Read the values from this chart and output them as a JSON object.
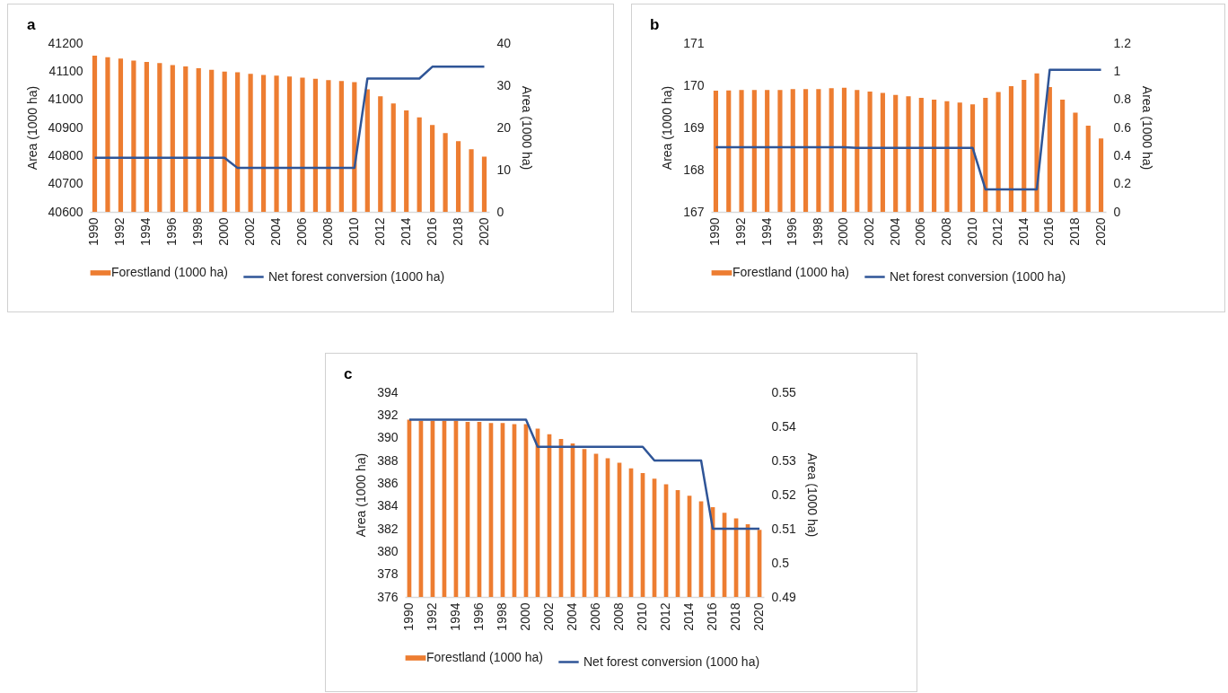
{
  "chart_data": [
    {
      "type": "bar",
      "title": "a",
      "categories": [
        "1990",
        null,
        "1992",
        null,
        "1994",
        null,
        "1996",
        null,
        "1998",
        null,
        "2000",
        null,
        "2002",
        null,
        "2004",
        null,
        "2006",
        null,
        "2008",
        null,
        "2010",
        null,
        "2012",
        null,
        "2014",
        null,
        "2016",
        null,
        "2018",
        null,
        "2020"
      ],
      "ylabel": "Area (1000 ha)",
      "y2label": "Area (1000 ha)",
      "ylim": [
        40600,
        41200
      ],
      "yticks": [
        {
          "value": 40600,
          "label": "40600"
        },
        {
          "value": 40700,
          "label": "40700"
        },
        {
          "value": 40800,
          "label": "40800"
        },
        {
          "value": 40900,
          "label": "40900"
        },
        {
          "value": 41000,
          "label": "41000"
        },
        {
          "value": 41100,
          "label": "41100"
        },
        {
          "value": 41200,
          "label": "41200"
        }
      ],
      "y2lim": [
        0,
        40
      ],
      "y2ticks": [
        0,
        10,
        20,
        30,
        40
      ],
      "legend": "bottom",
      "series": [
        {
          "name": "Forestland (1000 ha)",
          "color": "#ed7d31",
          "values": [
            41155,
            41150,
            41145,
            41138,
            41133,
            41129,
            41122,
            41117,
            41111,
            41105,
            41099,
            41096,
            41091,
            41087,
            41084,
            41081,
            41077,
            41073,
            41068,
            41065,
            41061,
            41036,
            41011,
            40985,
            40961,
            40936,
            40909,
            40880,
            40851,
            40823,
            40796
          ]
        },
        {
          "name": "Net forest conversion  (1000 ha)",
          "type": "line",
          "axis": "y2",
          "color": "#2f5597",
          "values": [
            12.8,
            12.8,
            12.8,
            12.8,
            12.8,
            12.8,
            12.8,
            12.8,
            12.8,
            12.8,
            12.8,
            10.4,
            10.4,
            10.4,
            10.4,
            10.4,
            10.4,
            10.4,
            10.4,
            10.4,
            10.4,
            31.6,
            31.6,
            31.6,
            31.6,
            31.6,
            34.4,
            34.4,
            34.4,
            34.4,
            34.4
          ]
        }
      ]
    },
    {
      "type": "bar",
      "title": "b",
      "categories": [
        "1990",
        null,
        "1992",
        null,
        "1994",
        null,
        "1996",
        null,
        "1998",
        null,
        "2000",
        null,
        "2002",
        null,
        "2004",
        null,
        "2006",
        null,
        "2008",
        null,
        "2010",
        null,
        "2012",
        null,
        "2014",
        null,
        "2016",
        null,
        "2018",
        null,
        "2020"
      ],
      "ylabel": "Area (1000 ha)",
      "y2label": "Area (1000 ha)",
      "ylim": [
        167,
        171
      ],
      "yticks": [
        167,
        168,
        169,
        170,
        171
      ],
      "y2lim": [
        0,
        1.2
      ],
      "y2ticks": [
        0,
        0.2,
        0.4,
        0.6,
        0.8,
        1,
        1.2
      ],
      "legend": "bottom",
      "series": [
        {
          "name": "Forestland (1000 ha)",
          "color": "#ed7d31",
          "values": [
            169.87,
            169.88,
            169.89,
            169.89,
            169.89,
            169.89,
            169.91,
            169.91,
            169.91,
            169.93,
            169.94,
            169.89,
            169.85,
            169.82,
            169.77,
            169.74,
            169.7,
            169.66,
            169.62,
            169.59,
            169.55,
            169.7,
            169.84,
            169.98,
            170.13,
            170.28,
            169.96,
            169.66,
            169.35,
            169.04,
            168.74
          ]
        },
        {
          "name": "Net forest conversion  (1000 ha)",
          "type": "line",
          "axis": "y2",
          "color": "#2f5597",
          "values": [
            0.46,
            0.46,
            0.46,
            0.46,
            0.46,
            0.46,
            0.46,
            0.46,
            0.46,
            0.46,
            0.46,
            0.455,
            0.455,
            0.455,
            0.455,
            0.455,
            0.455,
            0.455,
            0.455,
            0.455,
            0.455,
            0.16,
            0.16,
            0.16,
            0.16,
            0.16,
            1.01,
            1.01,
            1.01,
            1.01,
            1.01
          ]
        }
      ]
    },
    {
      "type": "bar",
      "title": "c",
      "categories": [
        "1990",
        null,
        "1992",
        null,
        "1994",
        null,
        "1996",
        null,
        "1998",
        null,
        "2000",
        null,
        "2002",
        null,
        "2004",
        null,
        "2006",
        null,
        "2008",
        null,
        "2010",
        null,
        "2012",
        null,
        "2014",
        null,
        "2016",
        null,
        "2018",
        null,
        "2020"
      ],
      "ylabel": "Area (1000 ha)",
      "y2label": "Area (1000 ha)",
      "ylim": [
        376,
        394
      ],
      "yticks": [
        376,
        378,
        380,
        382,
        384,
        386,
        388,
        390,
        392,
        394
      ],
      "y2lim": [
        0.49,
        0.55
      ],
      "y2ticks": [
        0.49,
        0.5,
        0.51,
        0.52,
        0.53,
        0.54,
        0.55
      ],
      "legend": "bottom",
      "series": [
        {
          "name": "Forestland (1000 ha)",
          "color": "#ed7d31",
          "values": [
            391.6,
            391.5,
            391.5,
            391.5,
            391.5,
            391.4,
            391.4,
            391.3,
            391.3,
            391.2,
            391.2,
            390.8,
            390.3,
            389.9,
            389.5,
            389.0,
            388.6,
            388.2,
            387.8,
            387.3,
            386.9,
            386.4,
            385.9,
            385.4,
            384.9,
            384.4,
            383.9,
            383.4,
            382.9,
            382.4,
            381.9
          ]
        },
        {
          "name": "Net forest conversion  (1000 ha)",
          "type": "line",
          "axis": "y2",
          "color": "#2f5597",
          "values": [
            0.542,
            0.542,
            0.542,
            0.542,
            0.542,
            0.542,
            0.542,
            0.542,
            0.542,
            0.542,
            0.542,
            0.534,
            0.534,
            0.534,
            0.534,
            0.534,
            0.534,
            0.534,
            0.534,
            0.534,
            0.534,
            0.53,
            0.53,
            0.53,
            0.53,
            0.53,
            0.51,
            0.51,
            0.51,
            0.51,
            0.51
          ]
        }
      ]
    }
  ]
}
